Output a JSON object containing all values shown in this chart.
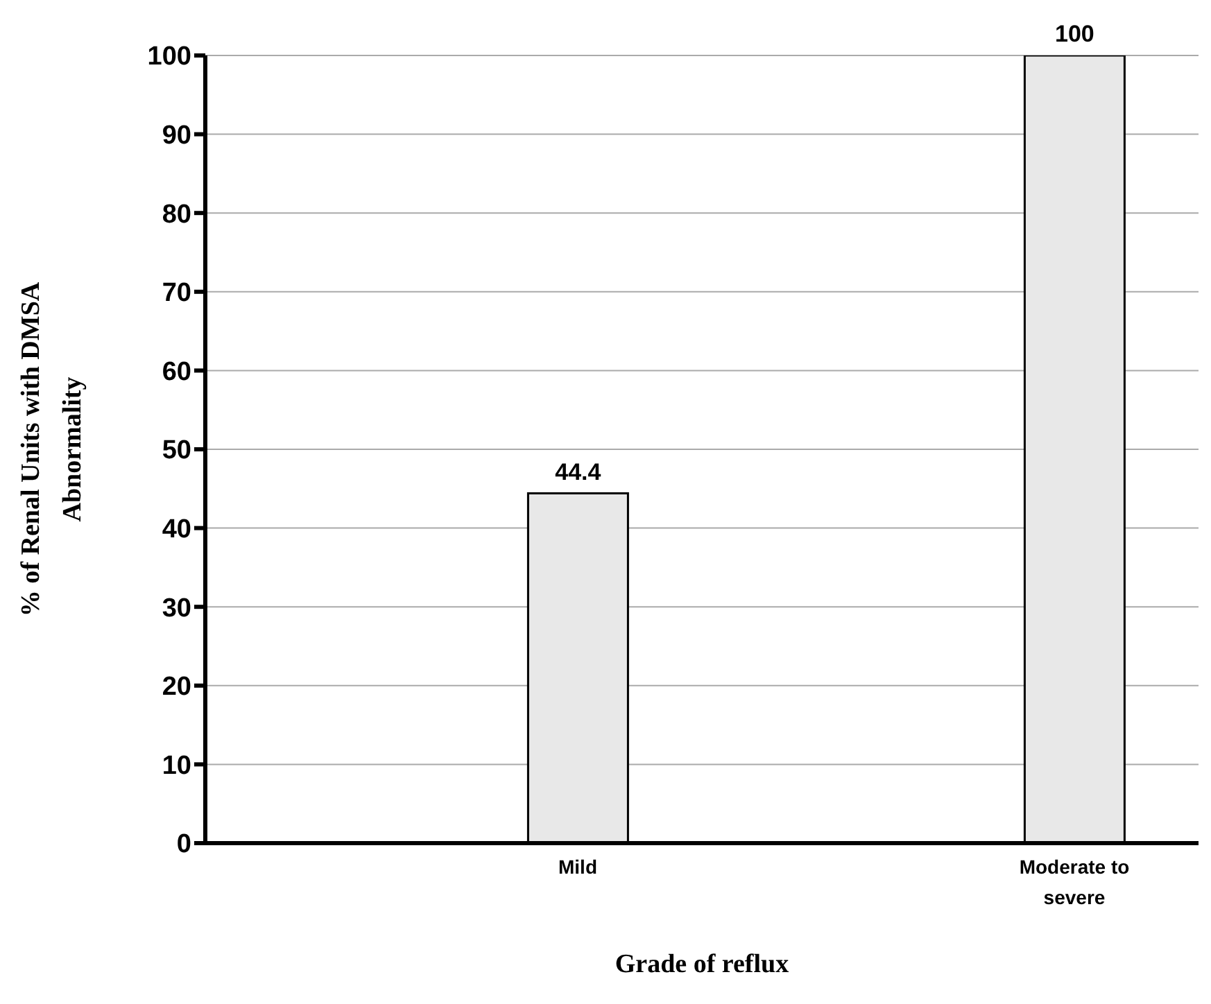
{
  "chart_data": {
    "type": "bar",
    "xlabel": "Grade of reflux",
    "ylabel": "% of Renal Units with DMSA Abnormality",
    "categories": [
      null,
      "Mild",
      null,
      "Moderate to severe"
    ],
    "values": [
      null,
      44.4,
      null,
      100
    ],
    "color": "#e8e8e8",
    "ylim": [
      0,
      100
    ],
    "yticks": [
      0,
      10,
      20,
      30,
      40,
      50,
      60,
      70,
      80,
      90,
      100
    ],
    "grid": "y",
    "data_labels": true
  }
}
